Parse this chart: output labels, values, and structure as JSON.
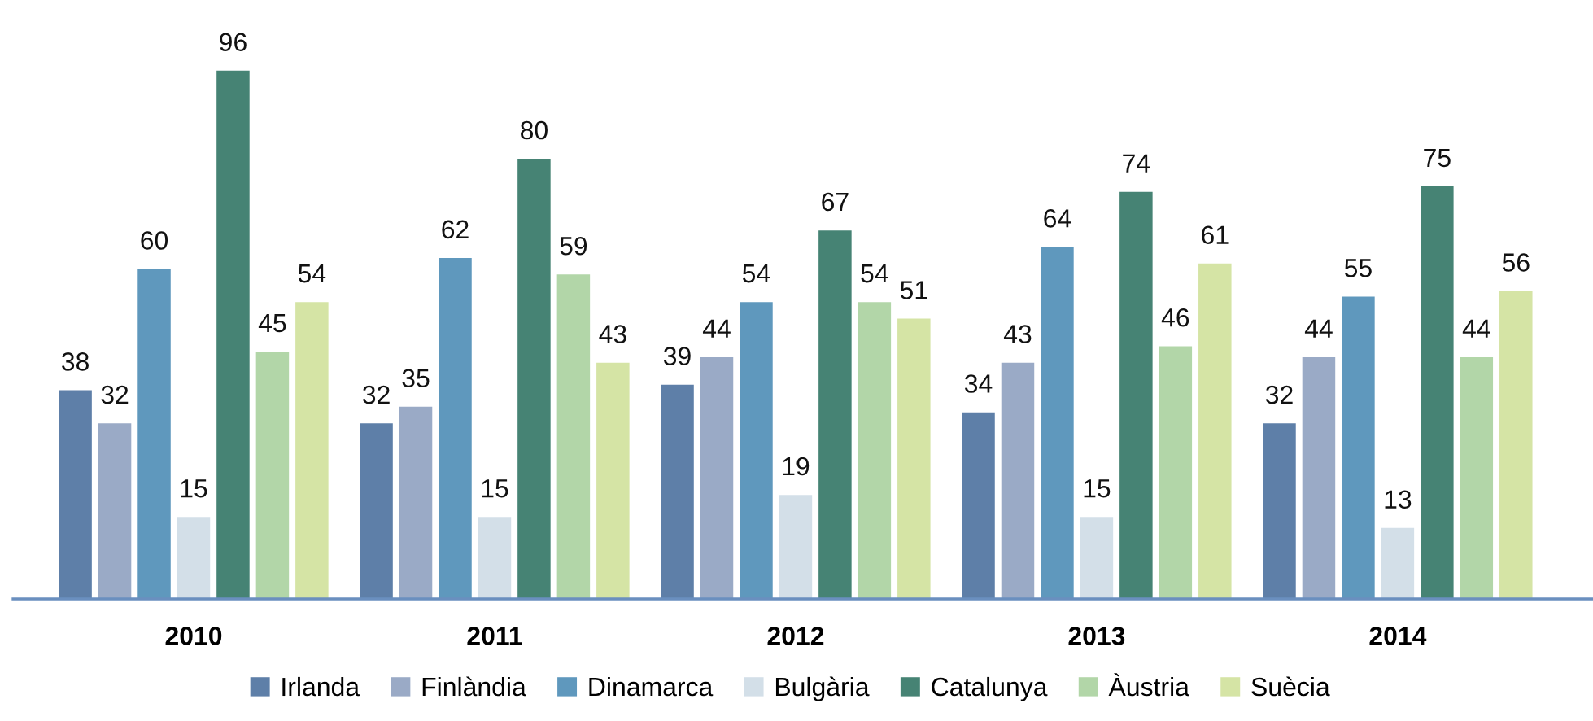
{
  "chart_data": {
    "type": "bar",
    "categories": [
      "2010",
      "2011",
      "2012",
      "2013",
      "2014"
    ],
    "series": [
      {
        "name": "Irlanda",
        "color": "#5e7fa8",
        "values": [
          38,
          32,
          39,
          34,
          32
        ]
      },
      {
        "name": "Finlàndia",
        "color": "#9aaac6",
        "values": [
          32,
          35,
          44,
          43,
          44
        ]
      },
      {
        "name": "Dinamarca",
        "color": "#5f98bd",
        "values": [
          60,
          62,
          54,
          64,
          55
        ]
      },
      {
        "name": "Bulgària",
        "color": "#d3dfe8",
        "values": [
          15,
          15,
          19,
          15,
          13
        ]
      },
      {
        "name": "Catalunya",
        "color": "#468374",
        "values": [
          96,
          80,
          67,
          74,
          75
        ]
      },
      {
        "name": "Àustria",
        "color": "#b2d6a8",
        "values": [
          45,
          59,
          54,
          46,
          44
        ]
      },
      {
        "name": "Suècia",
        "color": "#d5e4a5",
        "values": [
          54,
          43,
          51,
          61,
          56
        ]
      }
    ],
    "tick_labels": "x",
    "data_labels": true,
    "legend": "bottom",
    "grid": false
  }
}
